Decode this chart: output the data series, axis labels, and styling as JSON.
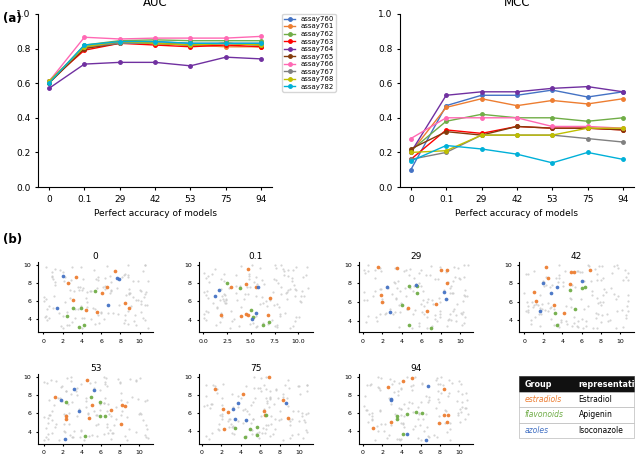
{
  "x_labels": [
    "0",
    "0.1",
    "29",
    "42",
    "53",
    "75",
    "94"
  ],
  "x_vals": [
    0,
    1,
    2,
    3,
    4,
    5,
    6
  ],
  "auc_data": {
    "assay760": [
      0.61,
      0.81,
      0.84,
      0.84,
      0.83,
      0.83,
      0.83
    ],
    "assay761": [
      0.6,
      0.8,
      0.84,
      0.83,
      0.82,
      0.81,
      0.81
    ],
    "assay762": [
      0.6,
      0.82,
      0.845,
      0.85,
      0.845,
      0.845,
      0.845
    ],
    "assay763": [
      0.61,
      0.79,
      0.83,
      0.82,
      0.81,
      0.82,
      0.81
    ],
    "assay764": [
      0.57,
      0.71,
      0.72,
      0.72,
      0.7,
      0.75,
      0.74
    ],
    "assay765": [
      0.6,
      0.8,
      0.83,
      0.83,
      0.82,
      0.83,
      0.82
    ],
    "assay766": [
      0.61,
      0.865,
      0.855,
      0.86,
      0.86,
      0.86,
      0.87
    ],
    "assay767": [
      0.61,
      0.81,
      0.83,
      0.83,
      0.82,
      0.83,
      0.82
    ],
    "assay768": [
      0.61,
      0.81,
      0.84,
      0.83,
      0.82,
      0.83,
      0.82
    ],
    "assay782": [
      0.6,
      0.82,
      0.84,
      0.84,
      0.83,
      0.83,
      0.83
    ]
  },
  "mcc_data": {
    "assay760": [
      0.1,
      0.47,
      0.53,
      0.53,
      0.56,
      0.52,
      0.55
    ],
    "assay761": [
      0.2,
      0.46,
      0.51,
      0.47,
      0.5,
      0.48,
      0.51
    ],
    "assay762": [
      0.21,
      0.38,
      0.42,
      0.4,
      0.4,
      0.38,
      0.4
    ],
    "assay763": [
      0.16,
      0.33,
      0.31,
      0.35,
      0.34,
      0.34,
      0.33
    ],
    "assay764": [
      0.2,
      0.53,
      0.55,
      0.55,
      0.57,
      0.58,
      0.55
    ],
    "assay765": [
      0.22,
      0.32,
      0.3,
      0.35,
      0.34,
      0.34,
      0.33
    ],
    "assay766": [
      0.28,
      0.4,
      0.4,
      0.4,
      0.35,
      0.35,
      0.34
    ],
    "assay767": [
      0.16,
      0.2,
      0.3,
      0.3,
      0.3,
      0.28,
      0.26
    ],
    "assay768": [
      0.2,
      0.21,
      0.3,
      0.3,
      0.3,
      0.34,
      0.34
    ],
    "assay782": [
      0.15,
      0.24,
      0.22,
      0.19,
      0.14,
      0.2,
      0.16
    ]
  },
  "colors": {
    "assay760": "#4472C4",
    "assay761": "#ED7D31",
    "assay762": "#70AD47",
    "assay763": "#FF0000",
    "assay764": "#7030A0",
    "assay765": "#843C0C",
    "assay766": "#FF69B4",
    "assay767": "#808080",
    "assay768": "#BFBF00",
    "assay782": "#00B0D8"
  },
  "scatter_titles": [
    "0",
    "0.1",
    "29",
    "42",
    "53",
    "75",
    "94"
  ],
  "table_headers": [
    "Group",
    "representative"
  ],
  "table_rows": [
    {
      "group": "estradiols",
      "rep": "Estradiol",
      "color": "#ED7D31"
    },
    {
      "group": "flavonoids",
      "rep": "Apigenin",
      "color": "#70AD47"
    },
    {
      "group": "azoles",
      "rep": "Isoconazole",
      "color": "#4472C4"
    }
  ]
}
